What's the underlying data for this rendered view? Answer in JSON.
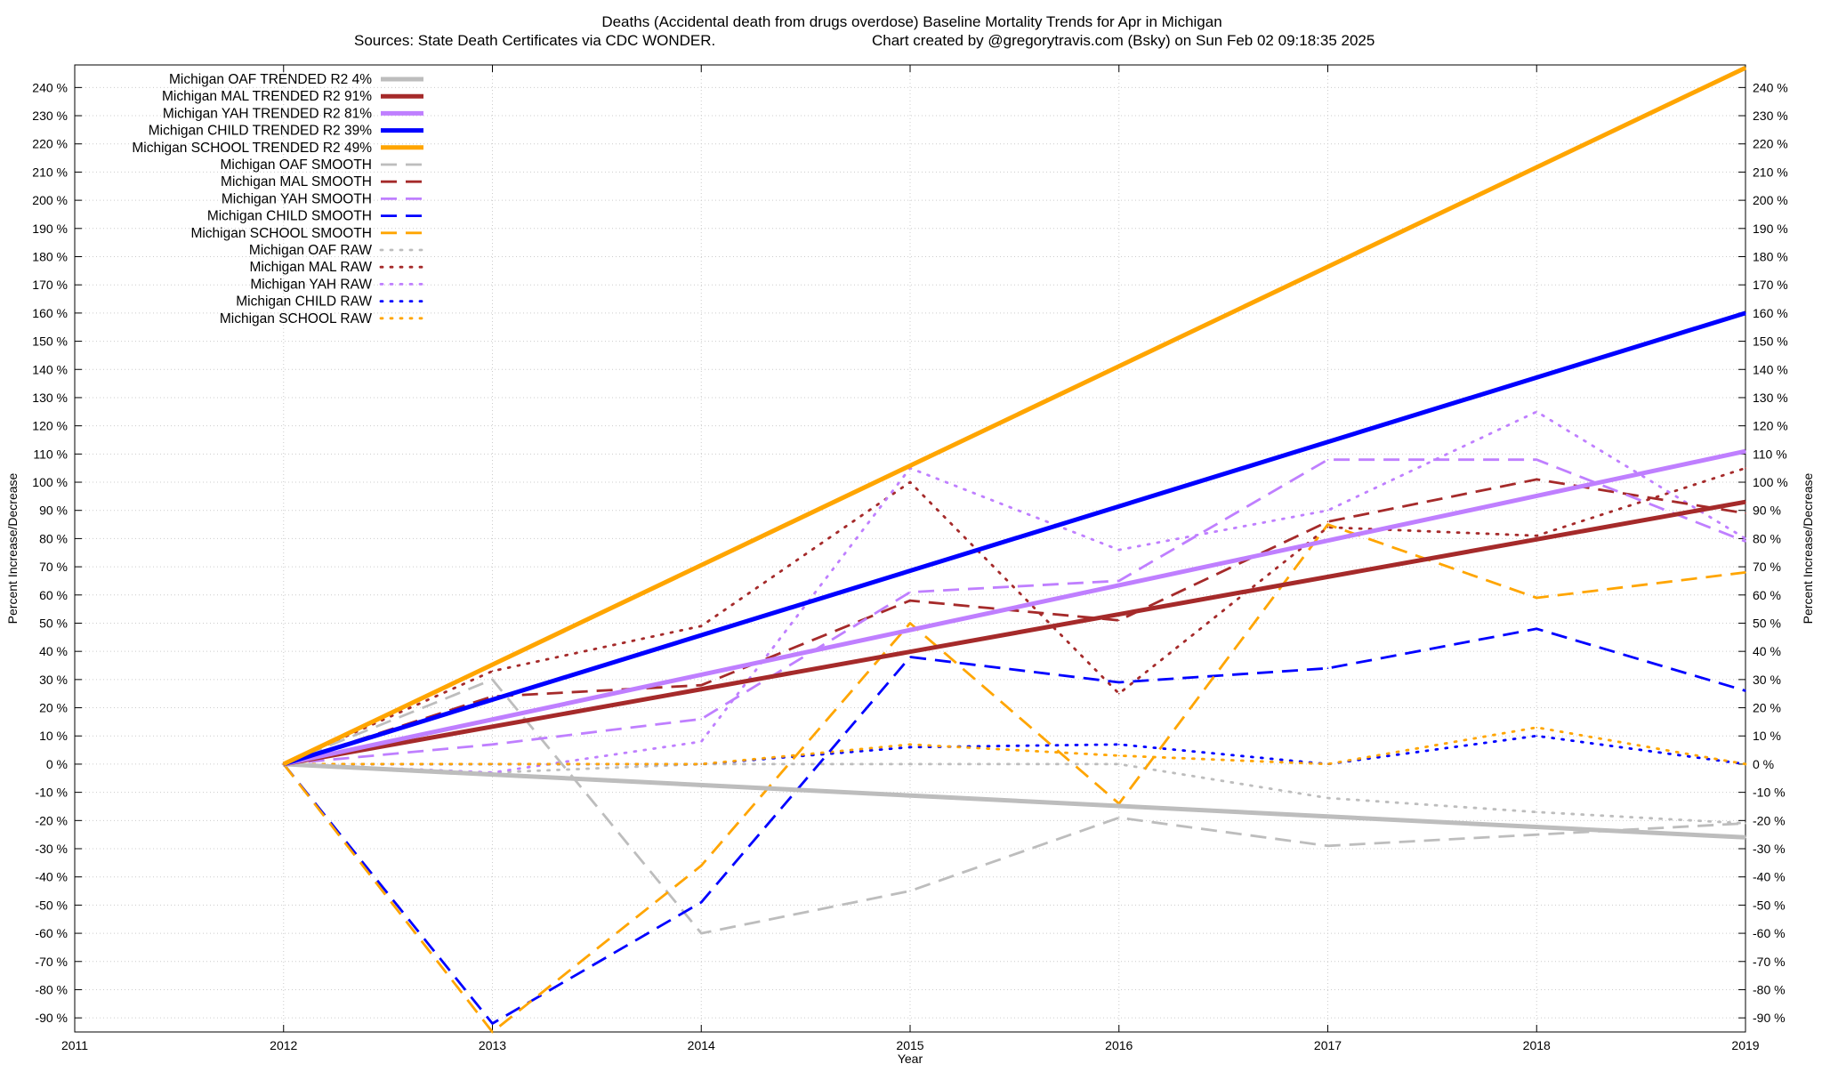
{
  "chart_data": {
    "type": "line",
    "title": "Deaths (Accidental death from drugs overdose)  Baseline Mortality Trends for Apr in Michigan",
    "subtitle_left": "Sources: State Death Certificates via CDC WONDER.",
    "subtitle_right": "Chart created by @gregorytravis.com (Bsky) on Sun Feb 02 09:18:35 2025",
    "xlabel": "Year",
    "ylabel_left": "Percent Increase/Decrease",
    "ylabel_right": "Percent Increase/Decrease",
    "xlim": [
      2011,
      2019
    ],
    "ylim": [
      -95,
      248
    ],
    "x_ticks": [
      "2011",
      "2012",
      "2013",
      "2014",
      "2015",
      "2016",
      "2017",
      "2018",
      "2019"
    ],
    "y_ticks": [
      "240 %",
      "230 %",
      "220 %",
      "210 %",
      "200 %",
      "190 %",
      "180 %",
      "170 %",
      "160 %",
      "150 %",
      "140 %",
      "130 %",
      "120 %",
      "110 %",
      "100 %",
      "90 %",
      "80 %",
      "70 %",
      "60 %",
      "50 %",
      "40 %",
      "30 %",
      "20 %",
      "10 %",
      "0 %",
      "-10 %",
      "-20 %",
      "-30 %",
      "-40 %",
      "-50 %",
      "-60 %",
      "-70 %",
      "-80 %",
      "-90 %"
    ],
    "grid": true,
    "legend_position": "top-left",
    "colors": {
      "oaf": "#bdbdbd",
      "mal": "#a52a2a",
      "yah": "#bf7fff",
      "child": "#0000ff",
      "school": "#ffa500"
    },
    "series": [
      {
        "name": "Michigan OAF TRENDED R2  4%",
        "group": "oaf",
        "style": "trend",
        "x": [
          2012,
          2019
        ],
        "values": [
          0,
          -26
        ]
      },
      {
        "name": "Michigan MAL TRENDED R2  91%",
        "group": "mal",
        "style": "trend",
        "x": [
          2012,
          2019
        ],
        "values": [
          0,
          93
        ]
      },
      {
        "name": "Michigan YAH TRENDED R2  81%",
        "group": "yah",
        "style": "trend",
        "x": [
          2012,
          2019
        ],
        "values": [
          0,
          111
        ]
      },
      {
        "name": "Michigan CHILD TRENDED R2  39%",
        "group": "child",
        "style": "trend",
        "x": [
          2012,
          2019
        ],
        "values": [
          0,
          160
        ]
      },
      {
        "name": "Michigan SCHOOL TRENDED R2  49%",
        "group": "school",
        "style": "trend",
        "x": [
          2012,
          2019
        ],
        "values": [
          0,
          247
        ]
      },
      {
        "name": "Michigan OAF SMOOTH",
        "group": "oaf",
        "style": "smooth",
        "x": [
          2012,
          2013,
          2014,
          2015,
          2016,
          2017,
          2018,
          2019
        ],
        "values": [
          0,
          30,
          -60,
          -45,
          -19,
          -29,
          -25,
          -21
        ]
      },
      {
        "name": "Michigan MAL SMOOTH",
        "group": "mal",
        "style": "smooth",
        "x": [
          2012,
          2013,
          2014,
          2015,
          2016,
          2017,
          2018,
          2019
        ],
        "values": [
          0,
          24,
          28,
          58,
          51,
          86,
          101,
          89
        ]
      },
      {
        "name": "Michigan YAH SMOOTH",
        "group": "yah",
        "style": "smooth",
        "x": [
          2012,
          2013,
          2014,
          2015,
          2016,
          2017,
          2018,
          2019
        ],
        "values": [
          0,
          7,
          16,
          61,
          65,
          108,
          108,
          79
        ]
      },
      {
        "name": "Michigan CHILD SMOOTH",
        "group": "child",
        "style": "smooth",
        "x": [
          2012,
          2013,
          2014,
          2015,
          2016,
          2017,
          2018,
          2019
        ],
        "values": [
          0,
          -92,
          -49,
          38,
          29,
          34,
          48,
          26
        ]
      },
      {
        "name": "Michigan SCHOOL SMOOTH",
        "group": "school",
        "style": "smooth",
        "x": [
          2012,
          2013,
          2014,
          2015,
          2016,
          2017,
          2018,
          2019
        ],
        "values": [
          0,
          -95,
          -36,
          50,
          -14,
          85,
          59,
          68
        ]
      },
      {
        "name": "Michigan OAF RAW",
        "group": "oaf",
        "style": "raw",
        "x": [
          2012,
          2013,
          2014,
          2015,
          2016,
          2017,
          2018,
          2019
        ],
        "values": [
          0,
          -3,
          0,
          0,
          0,
          -12,
          -17,
          -21
        ]
      },
      {
        "name": "Michigan MAL RAW",
        "group": "mal",
        "style": "raw",
        "x": [
          2012,
          2013,
          2014,
          2015,
          2016,
          2017,
          2018,
          2019
        ],
        "values": [
          0,
          33,
          49,
          100,
          25,
          84,
          81,
          105
        ]
      },
      {
        "name": "Michigan YAH RAW",
        "group": "yah",
        "style": "raw",
        "x": [
          2012,
          2013,
          2014,
          2015,
          2016,
          2017,
          2018,
          2019
        ],
        "values": [
          0,
          -3,
          8,
          105,
          76,
          90,
          125,
          80
        ]
      },
      {
        "name": "Michigan CHILD RAW",
        "group": "child",
        "style": "raw",
        "x": [
          2012,
          2013,
          2014,
          2015,
          2016,
          2017,
          2018,
          2019
        ],
        "values": [
          0,
          0,
          0,
          6,
          7,
          0,
          10,
          0
        ]
      },
      {
        "name": "Michigan SCHOOL RAW",
        "group": "school",
        "style": "raw",
        "x": [
          2012,
          2013,
          2014,
          2015,
          2016,
          2017,
          2018,
          2019
        ],
        "values": [
          0,
          0,
          0,
          7,
          3,
          0,
          13,
          0
        ]
      }
    ]
  }
}
